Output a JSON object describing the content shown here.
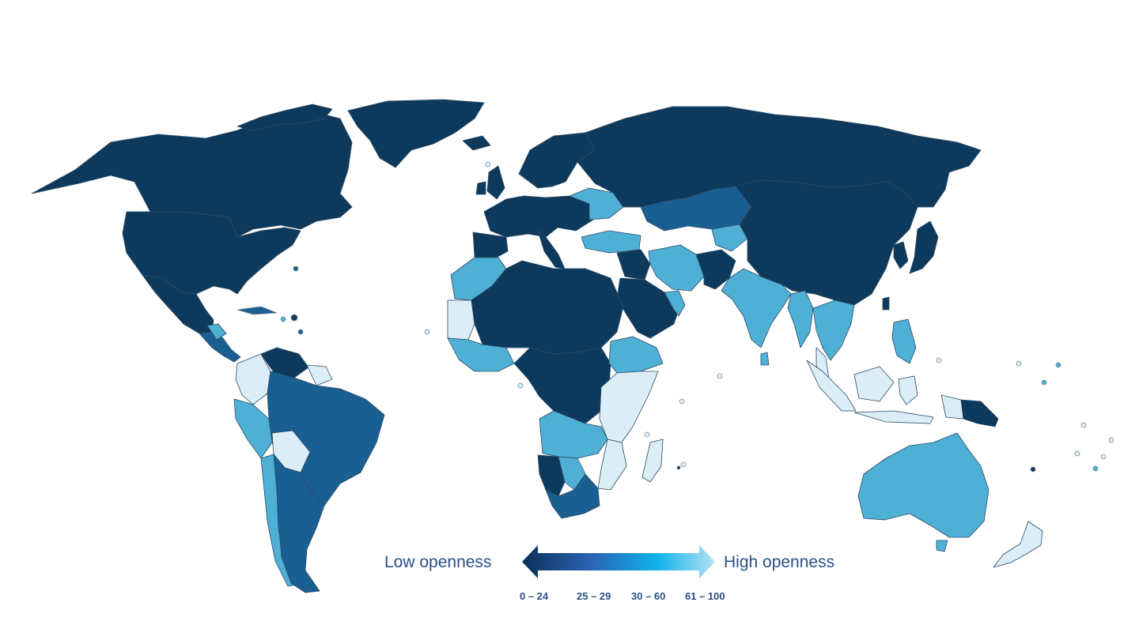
{
  "legend": {
    "low_label": "Low openness",
    "high_label": "High openness",
    "ranges": [
      "0 – 24",
      "25 – 29",
      "30 – 60",
      "61 – 100"
    ],
    "colors": {
      "low": "#0d3a5c",
      "mid_low": "#1a5f92",
      "mid_high": "#4fb0d6",
      "high": "#dbeef7"
    },
    "gradient": [
      "#0b2f57",
      "#2b62b3",
      "#10b2ea",
      "#b4e2f4"
    ]
  }
}
